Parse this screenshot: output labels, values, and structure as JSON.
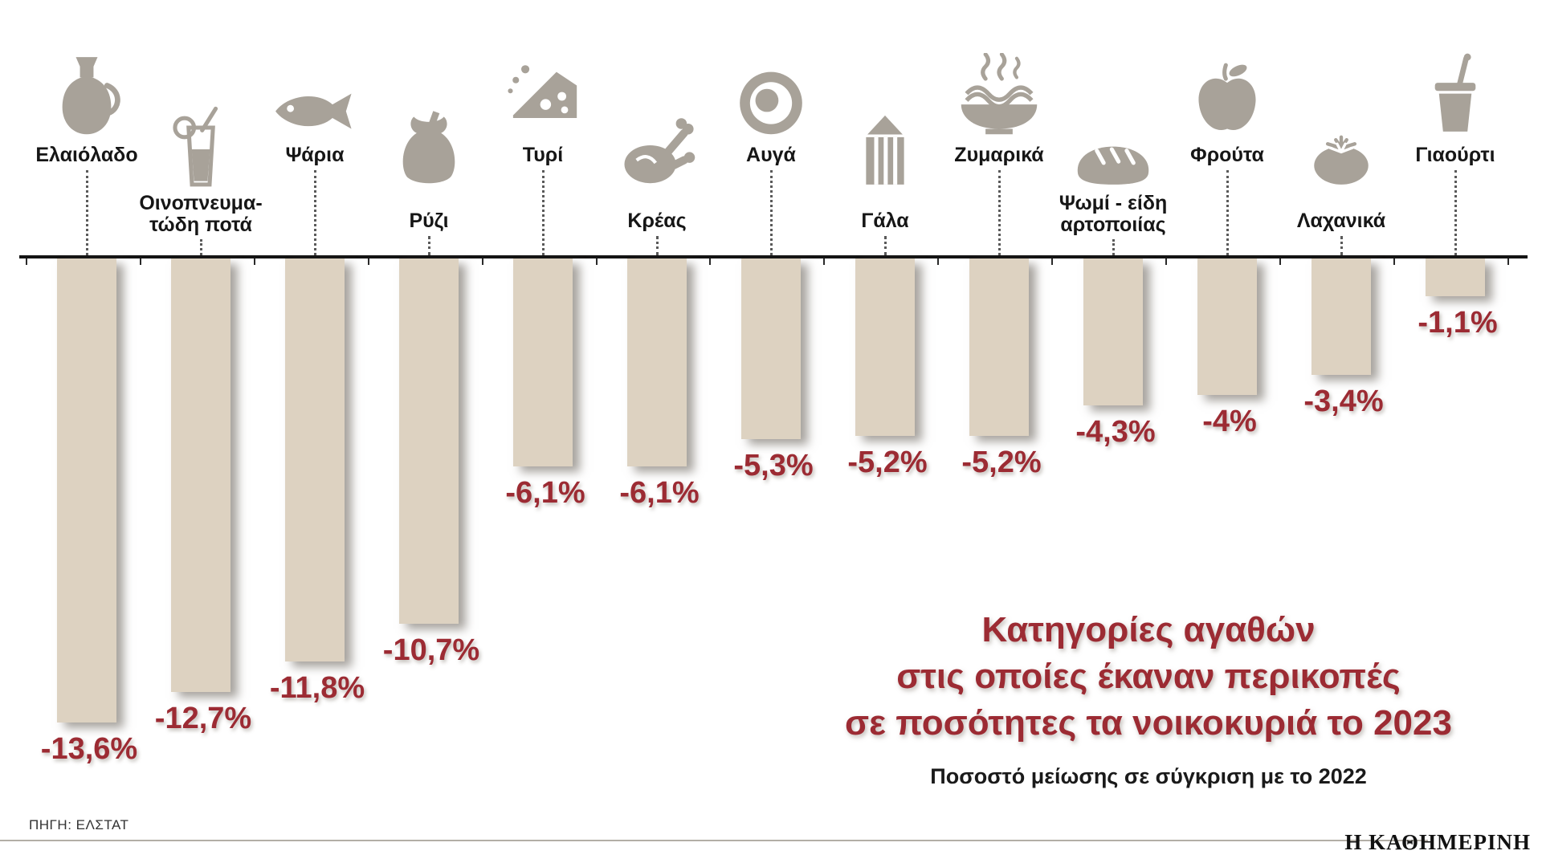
{
  "chart_data": {
    "type": "bar",
    "title": "Κατηγορίες αγαθών στις οποίες έκαναν περικοπές σε ποσότητες τα νοικοκυριά το 2023",
    "title_lines": [
      "Κατηγορίες αγαθών",
      "στις οποίες έκαναν περικοπές",
      "σε ποσότητες τα νοικοκυριά το 2023"
    ],
    "subtitle": "Ποσοστό μείωσης σε σύγκριση με το 2022",
    "source": "ΠΗΓΗ: ΕΛΣΤΑΤ",
    "logo": "Η ΚΑΘΗΜΕΡΙΝΗ",
    "unit": "%",
    "xlabel": "",
    "ylabel": "",
    "ylim": [
      -14,
      0
    ],
    "bar_color": "#ddd2c1",
    "value_color": "#9c2b33",
    "title_color": "#9c2b33",
    "icon_color": "#a8a299",
    "axis_color": "#141414",
    "categories": [
      {
        "label_lines": [
          "Ελαιόλαδο"
        ],
        "value": -13.6,
        "value_label": "-13,6%",
        "icon": "olive-oil-jug",
        "row": "upper"
      },
      {
        "label_lines": [
          "Οινοπνευμα-",
          "τώδη ποτά"
        ],
        "value": -12.7,
        "value_label": "-12,7%",
        "icon": "drink-glass",
        "row": "lower"
      },
      {
        "label_lines": [
          "Ψάρια"
        ],
        "value": -11.8,
        "value_label": "-11,8%",
        "icon": "fish",
        "row": "upper"
      },
      {
        "label_lines": [
          "Ρύζι"
        ],
        "value": -10.7,
        "value_label": "-10,7%",
        "icon": "rice-sack",
        "row": "lower"
      },
      {
        "label_lines": [
          "Τυρί"
        ],
        "value": -6.1,
        "value_label": "-6,1%",
        "icon": "cheese-wedge",
        "row": "upper"
      },
      {
        "label_lines": [
          "Κρέας"
        ],
        "value": -6.1,
        "value_label": "-6,1%",
        "icon": "roast-chicken",
        "row": "lower"
      },
      {
        "label_lines": [
          "Αυγά"
        ],
        "value": -5.3,
        "value_label": "-5,3%",
        "icon": "fried-egg",
        "row": "upper"
      },
      {
        "label_lines": [
          "Γάλα"
        ],
        "value": -5.2,
        "value_label": "-5,2%",
        "icon": "milk-carton",
        "row": "lower"
      },
      {
        "label_lines": [
          "Ζυμαρικά"
        ],
        "value": -5.2,
        "value_label": "-5,2%",
        "icon": "pasta-bowl",
        "row": "upper"
      },
      {
        "label_lines": [
          "Ψωμί - είδη",
          "αρτοποιίας"
        ],
        "value": -4.3,
        "value_label": "-4,3%",
        "icon": "bread-loaf",
        "row": "lower"
      },
      {
        "label_lines": [
          "Φρούτα"
        ],
        "value": -4.0,
        "value_label": "-4%",
        "icon": "apple",
        "row": "upper"
      },
      {
        "label_lines": [
          "Λαχανικά"
        ],
        "value": -3.4,
        "value_label": "-3,4%",
        "icon": "tomato",
        "row": "lower"
      },
      {
        "label_lines": [
          "Γιαούρτι"
        ],
        "value": -1.1,
        "value_label": "-1,1%",
        "icon": "yogurt-cup",
        "row": "upper"
      }
    ]
  }
}
